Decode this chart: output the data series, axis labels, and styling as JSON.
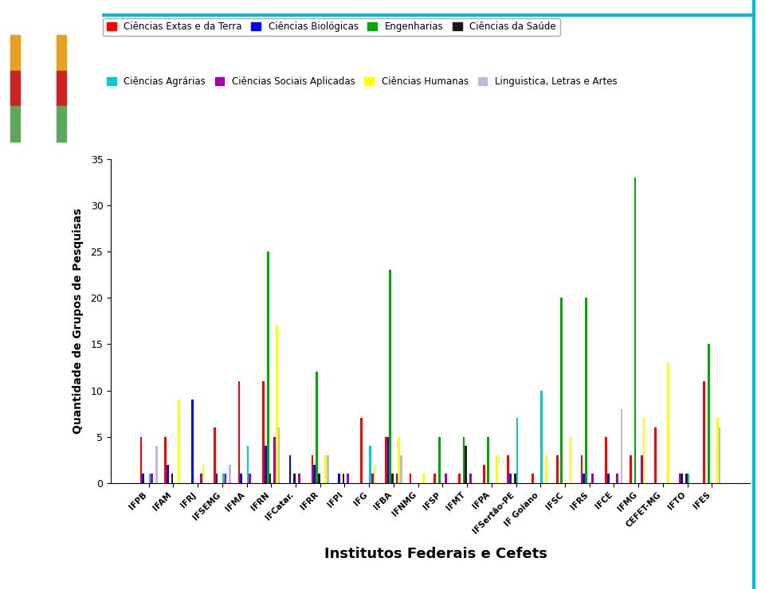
{
  "institutions": [
    "IFPB",
    "IFAM",
    "IFRJ",
    "IFSEMG",
    "IFMA",
    "IFRN",
    "IFCatar.",
    "IFRR",
    "IFPI",
    "IFG",
    "IFBA",
    "IFNMG",
    "IFSP",
    "IFMT",
    "IFPA",
    "IFSertão-PE",
    "IF Goiano",
    "IFSC",
    "IFRS",
    "IFCE",
    "IFMG",
    "CEFET-MG",
    "IFTO",
    "IFES"
  ],
  "series_order": [
    "Ciências Extas e da Terra",
    "Ciências Biológicas",
    "Engenharias",
    "Ciências da Saúde",
    "Ciências Agrárias",
    "Ciências Sociais Aplicadas",
    "Ciências Humanas",
    "Linguistica, Letras e Artes"
  ],
  "series": {
    "Ciências Extas e da Terra": {
      "color": "#FF0000",
      "values": [
        5,
        5,
        0,
        6,
        11,
        11,
        0,
        3,
        0,
        7,
        5,
        1,
        1,
        1,
        2,
        3,
        1,
        3,
        3,
        5,
        3,
        6,
        1,
        11
      ]
    },
    "Ciências Biológicas": {
      "color": "#0000FF",
      "values": [
        1,
        2,
        9,
        1,
        1,
        4,
        3,
        2,
        1,
        0,
        5,
        0,
        0,
        0,
        0,
        1,
        0,
        0,
        1,
        1,
        0,
        0,
        1,
        0
      ]
    },
    "Engenharias": {
      "color": "#00AA00",
      "values": [
        0,
        0,
        0,
        0,
        0,
        25,
        0,
        12,
        0,
        0,
        23,
        0,
        5,
        5,
        5,
        0,
        0,
        20,
        20,
        0,
        33,
        0,
        0,
        15
      ]
    },
    "Ciências da Saúde": {
      "color": "#1A1A1A",
      "values": [
        0,
        1,
        0,
        0,
        0,
        1,
        1,
        1,
        1,
        0,
        1,
        0,
        0,
        4,
        0,
        1,
        0,
        0,
        0,
        0,
        0,
        0,
        1,
        0
      ]
    },
    "Ciências Agrárias": {
      "color": "#00CCCC",
      "values": [
        1,
        0,
        0,
        1,
        4,
        0,
        0,
        0,
        0,
        4,
        0,
        0,
        0,
        0,
        0,
        7,
        10,
        0,
        0,
        0,
        0,
        0,
        1,
        0
      ]
    },
    "Ciências Sociais Aplicadas": {
      "color": "#AA00AA",
      "values": [
        1,
        0,
        1,
        1,
        1,
        5,
        1,
        0,
        1,
        1,
        1,
        0,
        1,
        1,
        0,
        0,
        0,
        0,
        1,
        1,
        3,
        0,
        0,
        0
      ]
    },
    "Ciências Humanas": {
      "color": "#FFFF00",
      "values": [
        0,
        9,
        2,
        0,
        0,
        17,
        0,
        3,
        0,
        2,
        5,
        1,
        0,
        0,
        3,
        0,
        3,
        5,
        0,
        0,
        7,
        13,
        0,
        7
      ]
    },
    "Linguistica, Letras e Artes": {
      "color": "#BBBBDD",
      "values": [
        4,
        0,
        0,
        2,
        0,
        6,
        0,
        3,
        0,
        0,
        3,
        0,
        0,
        0,
        0,
        0,
        0,
        0,
        0,
        8,
        0,
        0,
        0,
        6
      ]
    }
  },
  "ylabel": "Quantidade de Grupos de Pesquisas",
  "xlabel": "Institutos Federais e Cefets",
  "ylim": [
    0,
    35
  ],
  "yticks": [
    0,
    5,
    10,
    15,
    20,
    25,
    30,
    35
  ],
  "background_color": "#FFFFFF",
  "legend_fontsize": 8.5,
  "ylabel_fontsize": 10,
  "xlabel_fontsize": 13,
  "sidebar_color": "#4CAF50",
  "legend_row1": [
    "Ciências Extas e da Terra",
    "Ciências Biológicas",
    "Engenharias",
    "Ciências da Saúde"
  ],
  "legend_row2": [
    "Ciências Agrárias",
    "Ciências Sociais Aplicadas",
    "Ciências Humanas",
    "Linguistica, Letras e Artes"
  ]
}
